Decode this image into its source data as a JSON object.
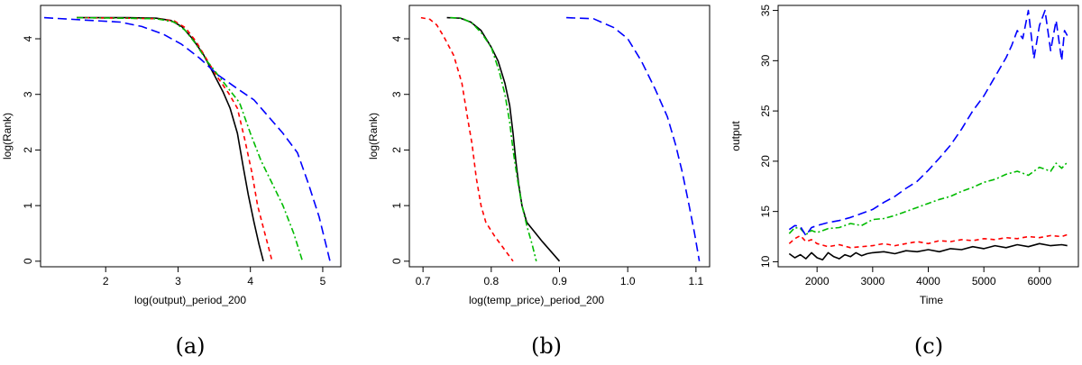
{
  "figure": {
    "panels": [
      {
        "caption": "(a)",
        "xlabel": "log(output)_period_200",
        "ylabel": "log(Rank)"
      },
      {
        "caption": "(b)",
        "xlabel": "log(temp_price)_period_200",
        "ylabel": "log(Rank)"
      },
      {
        "caption": "(c)",
        "xlabel": "Time",
        "ylabel": "output"
      }
    ]
  },
  "chart_data": [
    {
      "type": "line",
      "title": "",
      "caption": "(a)",
      "xlabel": "log(output)_period_200",
      "ylabel": "log(Rank)",
      "xlim": [
        1.1,
        5.25
      ],
      "ylim": [
        -0.1,
        4.6
      ],
      "xticks": [
        2,
        3,
        4,
        5
      ],
      "yticks": [
        0,
        1,
        2,
        3,
        4
      ],
      "series": [
        {
          "color": "#000000",
          "dash": "",
          "points": [
            [
              1.6,
              4.38
            ],
            [
              2.3,
              4.38
            ],
            [
              2.7,
              4.37
            ],
            [
              2.9,
              4.33
            ],
            [
              3.05,
              4.22
            ],
            [
              3.2,
              4.0
            ],
            [
              3.35,
              3.72
            ],
            [
              3.5,
              3.35
            ],
            [
              3.62,
              3.05
            ],
            [
              3.72,
              2.75
            ],
            [
              3.82,
              2.3
            ],
            [
              3.9,
              1.7
            ],
            [
              3.97,
              1.2
            ],
            [
              4.05,
              0.7
            ],
            [
              4.12,
              0.3
            ],
            [
              4.18,
              0.0
            ]
          ]
        },
        {
          "color": "#ff0000",
          "dash": "5,4",
          "points": [
            [
              1.6,
              4.38
            ],
            [
              2.3,
              4.37
            ],
            [
              2.7,
              4.36
            ],
            [
              2.95,
              4.32
            ],
            [
              3.1,
              4.2
            ],
            [
              3.25,
              3.95
            ],
            [
              3.4,
              3.62
            ],
            [
              3.55,
              3.3
            ],
            [
              3.7,
              3.02
            ],
            [
              3.82,
              2.75
            ],
            [
              3.92,
              2.2
            ],
            [
              4.02,
              1.6
            ],
            [
              4.1,
              1.0
            ],
            [
              4.18,
              0.6
            ],
            [
              4.24,
              0.3
            ],
            [
              4.3,
              0.0
            ]
          ]
        },
        {
          "color": "#00bb00",
          "dash": "7,3,2,3",
          "points": [
            [
              1.6,
              4.38
            ],
            [
              2.3,
              4.37
            ],
            [
              2.7,
              4.36
            ],
            [
              2.95,
              4.3
            ],
            [
              3.1,
              4.15
            ],
            [
              3.25,
              3.9
            ],
            [
              3.4,
              3.6
            ],
            [
              3.55,
              3.35
            ],
            [
              3.7,
              3.1
            ],
            [
              3.85,
              2.85
            ],
            [
              4.0,
              2.3
            ],
            [
              4.15,
              1.8
            ],
            [
              4.3,
              1.4
            ],
            [
              4.45,
              1.0
            ],
            [
              4.6,
              0.5
            ],
            [
              4.72,
              0.0
            ]
          ]
        },
        {
          "color": "#0000ff",
          "dash": "10,5",
          "points": [
            [
              1.15,
              4.38
            ],
            [
              1.8,
              4.33
            ],
            [
              2.2,
              4.3
            ],
            [
              2.5,
              4.22
            ],
            [
              2.8,
              4.08
            ],
            [
              3.05,
              3.9
            ],
            [
              3.3,
              3.65
            ],
            [
              3.55,
              3.35
            ],
            [
              3.8,
              3.12
            ],
            [
              4.05,
              2.9
            ],
            [
              4.25,
              2.6
            ],
            [
              4.45,
              2.3
            ],
            [
              4.65,
              1.95
            ],
            [
              4.8,
              1.4
            ],
            [
              4.95,
              0.8
            ],
            [
              5.1,
              0.0
            ]
          ]
        }
      ]
    },
    {
      "type": "line",
      "title": "",
      "caption": "(b)",
      "xlabel": "log(temp_price)_period_200",
      "ylabel": "log(Rank)",
      "xlim": [
        0.68,
        1.12
      ],
      "ylim": [
        -0.1,
        4.6
      ],
      "xticks": [
        0.7,
        0.8,
        0.9,
        1.0,
        1.1
      ],
      "yticks": [
        0,
        1,
        2,
        3,
        4
      ],
      "series": [
        {
          "color": "#000000",
          "dash": "",
          "points": [
            [
              0.735,
              4.38
            ],
            [
              0.755,
              4.37
            ],
            [
              0.77,
              4.3
            ],
            [
              0.785,
              4.15
            ],
            [
              0.8,
              3.85
            ],
            [
              0.81,
              3.6
            ],
            [
              0.82,
              3.2
            ],
            [
              0.827,
              2.8
            ],
            [
              0.832,
              2.3
            ],
            [
              0.836,
              1.8
            ],
            [
              0.84,
              1.4
            ],
            [
              0.845,
              1.0
            ],
            [
              0.852,
              0.7
            ],
            [
              0.875,
              0.35
            ],
            [
              0.9,
              0.0
            ]
          ]
        },
        {
          "color": "#ff0000",
          "dash": "5,4",
          "points": [
            [
              0.697,
              4.38
            ],
            [
              0.71,
              4.35
            ],
            [
              0.72,
              4.25
            ],
            [
              0.73,
              4.05
            ],
            [
              0.745,
              3.7
            ],
            [
              0.757,
              3.2
            ],
            [
              0.765,
              2.6
            ],
            [
              0.772,
              2.1
            ],
            [
              0.778,
              1.5
            ],
            [
              0.785,
              1.0
            ],
            [
              0.792,
              0.7
            ],
            [
              0.805,
              0.45
            ],
            [
              0.82,
              0.2
            ],
            [
              0.832,
              0.0
            ]
          ]
        },
        {
          "color": "#00bb00",
          "dash": "7,3,2,3",
          "points": [
            [
              0.74,
              4.38
            ],
            [
              0.757,
              4.37
            ],
            [
              0.772,
              4.28
            ],
            [
              0.786,
              4.1
            ],
            [
              0.8,
              3.85
            ],
            [
              0.812,
              3.4
            ],
            [
              0.82,
              3.0
            ],
            [
              0.827,
              2.5
            ],
            [
              0.832,
              2.0
            ],
            [
              0.838,
              1.5
            ],
            [
              0.845,
              1.0
            ],
            [
              0.853,
              0.6
            ],
            [
              0.86,
              0.3
            ],
            [
              0.866,
              0.0
            ]
          ]
        },
        {
          "color": "#0000ff",
          "dash": "10,5",
          "points": [
            [
              0.91,
              4.38
            ],
            [
              0.95,
              4.36
            ],
            [
              0.98,
              4.2
            ],
            [
              1.0,
              4.0
            ],
            [
              1.02,
              3.6
            ],
            [
              1.04,
              3.1
            ],
            [
              1.058,
              2.6
            ],
            [
              1.07,
              2.1
            ],
            [
              1.08,
              1.6
            ],
            [
              1.09,
              1.0
            ],
            [
              1.098,
              0.5
            ],
            [
              1.105,
              0.0
            ]
          ]
        }
      ]
    },
    {
      "type": "line",
      "title": "",
      "caption": "(c)",
      "xlabel": "Time",
      "ylabel": "output",
      "xlim": [
        1300,
        6700
      ],
      "ylim": [
        9.5,
        35.5
      ],
      "xticks": [
        2000,
        3000,
        4000,
        5000,
        6000
      ],
      "yticks": [
        10,
        15,
        20,
        25,
        30,
        35
      ],
      "series": [
        {
          "color": "#000000",
          "dash": "",
          "points": [
            [
              1500,
              10.8
            ],
            [
              1600,
              10.4
            ],
            [
              1700,
              10.7
            ],
            [
              1800,
              10.3
            ],
            [
              1900,
              10.9
            ],
            [
              2000,
              10.4
            ],
            [
              2100,
              10.2
            ],
            [
              2200,
              10.9
            ],
            [
              2300,
              10.5
            ],
            [
              2400,
              10.3
            ],
            [
              2500,
              10.7
            ],
            [
              2600,
              10.5
            ],
            [
              2700,
              10.9
            ],
            [
              2800,
              10.6
            ],
            [
              2900,
              10.8
            ],
            [
              3000,
              10.9
            ],
            [
              3200,
              11.0
            ],
            [
              3400,
              10.8
            ],
            [
              3600,
              11.1
            ],
            [
              3800,
              11.0
            ],
            [
              4000,
              11.2
            ],
            [
              4200,
              11.0
            ],
            [
              4400,
              11.3
            ],
            [
              4600,
              11.2
            ],
            [
              4800,
              11.5
            ],
            [
              5000,
              11.3
            ],
            [
              5200,
              11.6
            ],
            [
              5400,
              11.4
            ],
            [
              5600,
              11.7
            ],
            [
              5800,
              11.5
            ],
            [
              6000,
              11.8
            ],
            [
              6200,
              11.6
            ],
            [
              6400,
              11.7
            ],
            [
              6500,
              11.6
            ]
          ]
        },
        {
          "color": "#ff0000",
          "dash": "5,4",
          "points": [
            [
              1500,
              11.8
            ],
            [
              1600,
              12.3
            ],
            [
              1700,
              12.6
            ],
            [
              1800,
              12.0
            ],
            [
              1900,
              12.2
            ],
            [
              2000,
              11.8
            ],
            [
              2200,
              11.5
            ],
            [
              2400,
              11.7
            ],
            [
              2600,
              11.4
            ],
            [
              2800,
              11.5
            ],
            [
              3000,
              11.6
            ],
            [
              3200,
              11.8
            ],
            [
              3400,
              11.6
            ],
            [
              3600,
              11.8
            ],
            [
              3800,
              12.0
            ],
            [
              4000,
              11.8
            ],
            [
              4200,
              12.1
            ],
            [
              4400,
              12.0
            ],
            [
              4600,
              12.2
            ],
            [
              4800,
              12.1
            ],
            [
              5000,
              12.3
            ],
            [
              5200,
              12.2
            ],
            [
              5400,
              12.4
            ],
            [
              5600,
              12.3
            ],
            [
              5800,
              12.5
            ],
            [
              6000,
              12.4
            ],
            [
              6200,
              12.6
            ],
            [
              6400,
              12.5
            ],
            [
              6500,
              12.7
            ]
          ]
        },
        {
          "color": "#00bb00",
          "dash": "7,3,2,3",
          "points": [
            [
              1500,
              12.8
            ],
            [
              1600,
              13.4
            ],
            [
              1700,
              13.3
            ],
            [
              1800,
              12.7
            ],
            [
              1900,
              13.1
            ],
            [
              2000,
              12.9
            ],
            [
              2200,
              13.3
            ],
            [
              2400,
              13.4
            ],
            [
              2600,
              13.8
            ],
            [
              2800,
              13.6
            ],
            [
              3000,
              14.2
            ],
            [
              3200,
              14.3
            ],
            [
              3400,
              14.6
            ],
            [
              3600,
              15.0
            ],
            [
              3800,
              15.4
            ],
            [
              4000,
              15.8
            ],
            [
              4200,
              16.2
            ],
            [
              4400,
              16.5
            ],
            [
              4600,
              17.0
            ],
            [
              4800,
              17.4
            ],
            [
              5000,
              17.9
            ],
            [
              5200,
              18.2
            ],
            [
              5400,
              18.7
            ],
            [
              5600,
              19.0
            ],
            [
              5800,
              18.6
            ],
            [
              6000,
              19.4
            ],
            [
              6200,
              19.0
            ],
            [
              6300,
              19.8
            ],
            [
              6400,
              19.3
            ],
            [
              6500,
              19.9
            ]
          ]
        },
        {
          "color": "#0000ff",
          "dash": "10,5",
          "points": [
            [
              1500,
              13.2
            ],
            [
              1600,
              13.6
            ],
            [
              1700,
              13.5
            ],
            [
              1800,
              12.6
            ],
            [
              1900,
              13.4
            ],
            [
              2000,
              13.6
            ],
            [
              2200,
              13.9
            ],
            [
              2400,
              14.1
            ],
            [
              2600,
              14.4
            ],
            [
              2800,
              14.8
            ],
            [
              3000,
              15.2
            ],
            [
              3200,
              15.9
            ],
            [
              3400,
              16.5
            ],
            [
              3600,
              17.3
            ],
            [
              3800,
              18.0
            ],
            [
              4000,
              19.1
            ],
            [
              4200,
              20.3
            ],
            [
              4400,
              21.6
            ],
            [
              4600,
              23.2
            ],
            [
              4800,
              25.0
            ],
            [
              5000,
              26.5
            ],
            [
              5200,
              28.4
            ],
            [
              5400,
              30.3
            ],
            [
              5500,
              31.5
            ],
            [
              5600,
              33.0
            ],
            [
              5700,
              32.2
            ],
            [
              5800,
              35.0
            ],
            [
              5900,
              30.2
            ],
            [
              6000,
              33.5
            ],
            [
              6100,
              35.0
            ],
            [
              6200,
              31.0
            ],
            [
              6300,
              34.0
            ],
            [
              6400,
              30.0
            ],
            [
              6450,
              33.0
            ],
            [
              6500,
              32.5
            ]
          ]
        }
      ]
    }
  ]
}
